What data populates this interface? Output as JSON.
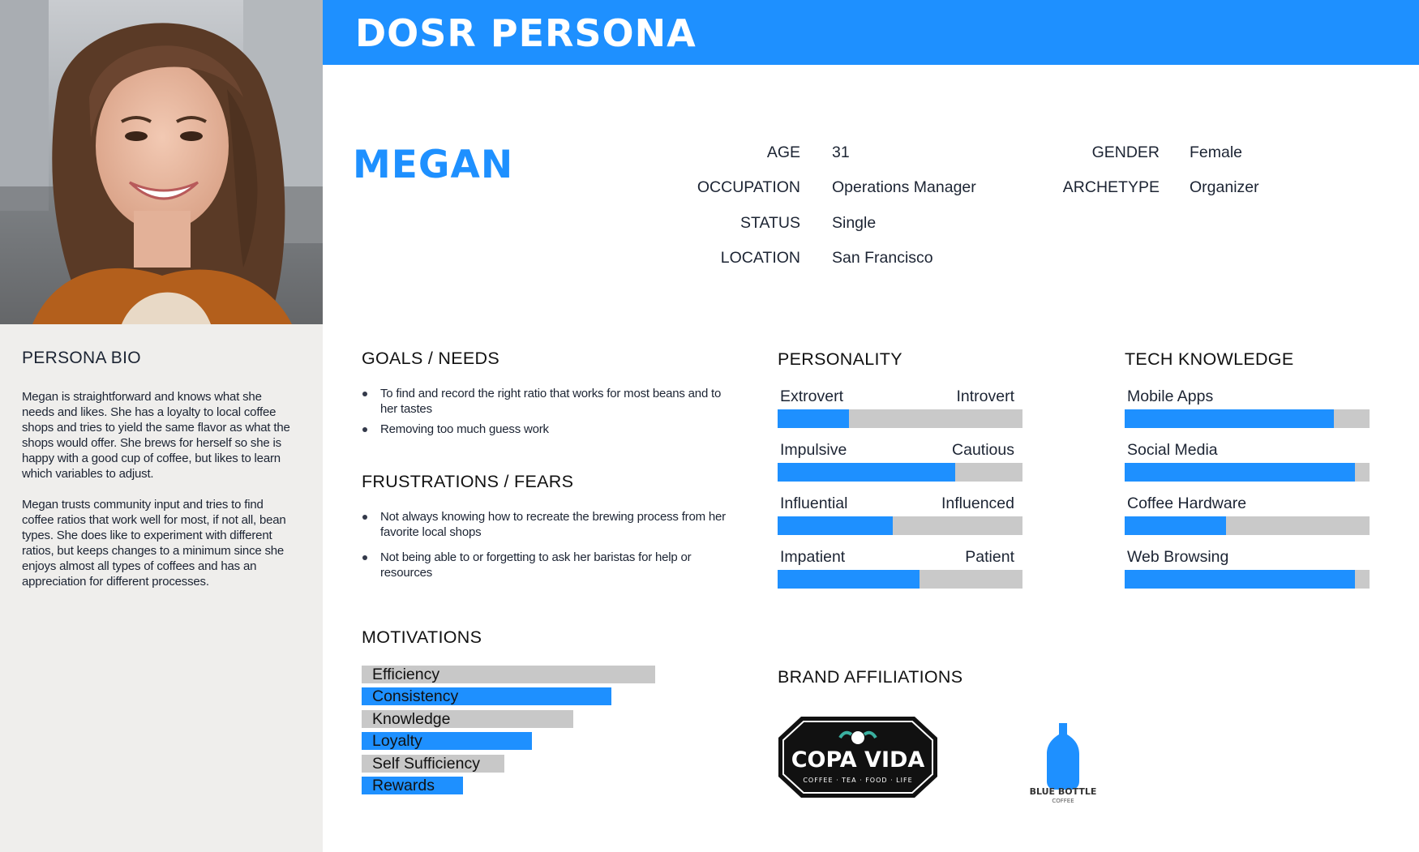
{
  "header": {
    "title": "DOSR PERSONA"
  },
  "persona": {
    "name": "MEGAN",
    "photo_alt": "portrait-photo"
  },
  "info": {
    "age_label": "AGE",
    "age": "31",
    "occupation_label": "OCCUPATION",
    "occupation": "Operations Manager",
    "status_label": "STATUS",
    "status": "Single",
    "location_label": "LOCATION",
    "location": "San Francisco",
    "gender_label": "GENDER",
    "gender": "Female",
    "archetype_label": "ARCHETYPE",
    "archetype": "Organizer"
  },
  "bio": {
    "title": "PERSONA BIO",
    "paragraphs": [
      "Megan is straightforward and knows what she needs and likes. She has a loyalty to local coffee shops and tries to yield the same flavor as what the shops would offer. She brews for herself so she is happy with a good cup of coffee, but likes to learn which variables to adjust.",
      "Megan trusts community input and tries to find coffee ratios that work well for most, if not all, bean types. She does like to experiment with different ratios, but keeps changes to a minimum since she enjoys almost all types of coffees and has an appreciation for different processes."
    ]
  },
  "goals": {
    "title": "GOALS / NEEDS",
    "items": [
      "To find and record the right ratio that works for most beans and to her tastes",
      "Removing too much guess work"
    ]
  },
  "frustrations": {
    "title": "FRUSTRATIONS / FEARS",
    "items": [
      "Not always knowing how to recreate the brewing process from her favorite local shops",
      "Not being able to or forgetting to ask her baristas for help or resources"
    ]
  },
  "motivations": {
    "title": "MOTIVATIONS",
    "items": [
      {
        "label": "Efficiency",
        "level": 1.0,
        "color": "#c8c8c8"
      },
      {
        "label": "Consistency",
        "level": 0.85,
        "color": "#1e90ff"
      },
      {
        "label": "Knowledge",
        "level": 0.72,
        "color": "#c8c8c8"
      },
      {
        "label": "Loyalty",
        "level": 0.58,
        "color": "#1e90ff"
      },
      {
        "label": "Self Sufficiency",
        "level": 0.485,
        "color": "#c8c8c8"
      },
      {
        "label": "Rewards",
        "level": 0.345,
        "color": "#1e90ff"
      }
    ]
  },
  "personality": {
    "title": "PERSONALITY",
    "items": [
      {
        "left": "Extrovert",
        "right": "Introvert",
        "value": 0.29
      },
      {
        "left": "Impulsive",
        "right": "Cautious",
        "value": 0.725
      },
      {
        "left": "Influential",
        "right": "Influenced",
        "value": 0.47
      },
      {
        "left": "Impatient",
        "right": "Patient",
        "value": 0.58
      }
    ]
  },
  "tech": {
    "title": "TECH KNOWLEDGE",
    "items": [
      {
        "label": "Mobile Apps",
        "value": 0.855
      },
      {
        "label": "Social Media",
        "value": 0.94
      },
      {
        "label": "Coffee Hardware",
        "value": 0.415
      },
      {
        "label": "Web Browsing",
        "value": 0.94
      }
    ]
  },
  "brands": {
    "title": "BRAND AFFILIATIONS",
    "copa_vida": {
      "name": "COPA VIDA",
      "tagline": "COFFEE · TEA · FOOD · LIFE"
    },
    "blue_bottle": {
      "name": "BLUE BOTTLE",
      "sub": "COFFEE"
    }
  },
  "colors": {
    "accent": "#1e90ff",
    "track": "#c9c9c9",
    "sidebar": "#efeeec"
  }
}
